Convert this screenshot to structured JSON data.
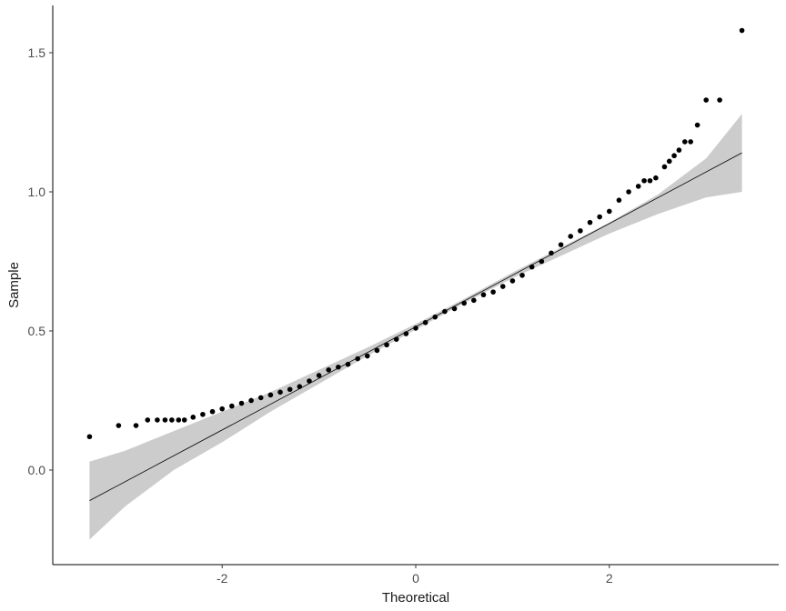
{
  "chart_data": {
    "type": "scatter",
    "title": "",
    "xlabel": "Theoretical",
    "ylabel": "Sample",
    "xlim": [
      -3.75,
      3.75
    ],
    "ylim": [
      -0.34,
      1.67
    ],
    "grid": false,
    "x_ticks": [
      {
        "value": -2,
        "label": "-2"
      },
      {
        "value": 0,
        "label": "0"
      },
      {
        "value": 2,
        "label": "2"
      }
    ],
    "y_ticks": [
      {
        "value": 0.0,
        "label": "0.0"
      },
      {
        "value": 0.5,
        "label": "0.5"
      },
      {
        "value": 1.0,
        "label": "1.0"
      },
      {
        "value": 1.5,
        "label": "1.5"
      }
    ],
    "reference_line": {
      "x": [
        -3.37,
        3.37
      ],
      "y": [
        -0.11,
        1.14
      ],
      "color": "#000000"
    },
    "confidence_band": {
      "color": "#cccccc",
      "x": [
        -3.37,
        -3.0,
        -2.5,
        -2.0,
        -1.5,
        -1.0,
        -0.5,
        0.0,
        0.5,
        1.0,
        1.5,
        2.0,
        2.5,
        3.0,
        3.37
      ],
      "lower": [
        -0.25,
        -0.13,
        0.0,
        0.1,
        0.21,
        0.31,
        0.41,
        0.505,
        0.6,
        0.69,
        0.77,
        0.85,
        0.92,
        0.98,
        1.0
      ],
      "upper": [
        0.03,
        0.07,
        0.14,
        0.21,
        0.28,
        0.36,
        0.44,
        0.525,
        0.615,
        0.71,
        0.8,
        0.89,
        0.99,
        1.12,
        1.28
      ]
    },
    "points_color": "#000000",
    "points": [
      [
        -3.37,
        0.12
      ],
      [
        -3.07,
        0.16
      ],
      [
        -2.89,
        0.16
      ],
      [
        -2.77,
        0.18
      ],
      [
        -2.67,
        0.18
      ],
      [
        -2.59,
        0.18
      ],
      [
        -2.52,
        0.18
      ],
      [
        -2.45,
        0.18
      ],
      [
        -2.39,
        0.18
      ],
      [
        -2.3,
        0.19
      ],
      [
        -2.2,
        0.2
      ],
      [
        -2.1,
        0.21
      ],
      [
        -2.0,
        0.22
      ],
      [
        -1.9,
        0.23
      ],
      [
        -1.8,
        0.24
      ],
      [
        -1.7,
        0.25
      ],
      [
        -1.6,
        0.26
      ],
      [
        -1.5,
        0.27
      ],
      [
        -1.4,
        0.28
      ],
      [
        -1.3,
        0.29
      ],
      [
        -1.2,
        0.3
      ],
      [
        -1.1,
        0.32
      ],
      [
        -1.0,
        0.34
      ],
      [
        -0.9,
        0.36
      ],
      [
        -0.8,
        0.37
      ],
      [
        -0.7,
        0.38
      ],
      [
        -0.6,
        0.4
      ],
      [
        -0.5,
        0.41
      ],
      [
        -0.4,
        0.43
      ],
      [
        -0.3,
        0.45
      ],
      [
        -0.2,
        0.47
      ],
      [
        -0.1,
        0.49
      ],
      [
        0.0,
        0.51
      ],
      [
        0.1,
        0.53
      ],
      [
        0.2,
        0.55
      ],
      [
        0.3,
        0.57
      ],
      [
        0.4,
        0.58
      ],
      [
        0.5,
        0.6
      ],
      [
        0.6,
        0.61
      ],
      [
        0.7,
        0.63
      ],
      [
        0.8,
        0.64
      ],
      [
        0.9,
        0.66
      ],
      [
        1.0,
        0.68
      ],
      [
        1.1,
        0.7
      ],
      [
        1.2,
        0.73
      ],
      [
        1.3,
        0.75
      ],
      [
        1.4,
        0.78
      ],
      [
        1.5,
        0.81
      ],
      [
        1.6,
        0.84
      ],
      [
        1.7,
        0.86
      ],
      [
        1.8,
        0.89
      ],
      [
        1.9,
        0.91
      ],
      [
        2.0,
        0.93
      ],
      [
        2.1,
        0.97
      ],
      [
        2.2,
        1.0
      ],
      [
        2.3,
        1.02
      ],
      [
        2.36,
        1.04
      ],
      [
        2.42,
        1.04
      ],
      [
        2.48,
        1.05
      ],
      [
        2.57,
        1.09
      ],
      [
        2.62,
        1.11
      ],
      [
        2.67,
        1.13
      ],
      [
        2.72,
        1.15
      ],
      [
        2.78,
        1.18
      ],
      [
        2.84,
        1.18
      ],
      [
        2.91,
        1.24
      ],
      [
        3.0,
        1.33
      ],
      [
        3.14,
        1.33
      ],
      [
        3.37,
        1.58
      ]
    ]
  }
}
